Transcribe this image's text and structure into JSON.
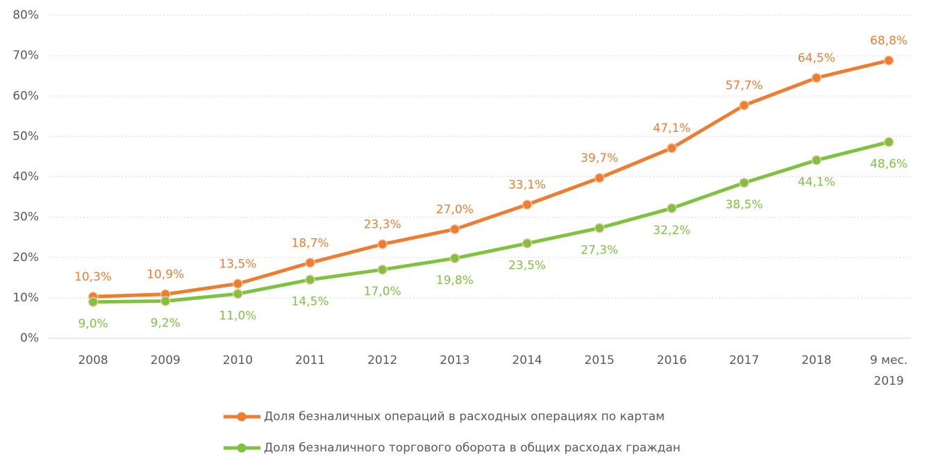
{
  "chart_data": {
    "type": "line",
    "categories": [
      "2008",
      "2009",
      "2010",
      "2011",
      "2012",
      "2013",
      "2014",
      "2015",
      "2016",
      "2017",
      "2018",
      "9 мес. 2019"
    ],
    "series": [
      {
        "name": "Доля безналичных операций в расходных операциях по картам",
        "color": "#ed7d31",
        "values": [
          10.3,
          10.9,
          13.5,
          18.7,
          23.3,
          27.0,
          33.1,
          39.7,
          47.1,
          57.7,
          64.5,
          68.8
        ],
        "value_labels": [
          "10,3%",
          "10,9%",
          "13,5%",
          "18,7%",
          "23,3%",
          "27,0%",
          "33,1%",
          "39,7%",
          "47,1%",
          "57,7%",
          "64,5%",
          "68,8%"
        ]
      },
      {
        "name": "Доля безналичного торгового оборота в общих расходах граждан",
        "color": "#7fc241",
        "values": [
          9.0,
          9.2,
          11.0,
          14.5,
          17.0,
          19.8,
          23.5,
          27.3,
          32.2,
          38.5,
          44.1,
          48.6
        ],
        "value_labels": [
          "9,0%",
          "9,2%",
          "11,0%",
          "14,5%",
          "17,0%",
          "19,8%",
          "23,5%",
          "27,3%",
          "32,2%",
          "38,5%",
          "44,1%",
          "48,6%"
        ]
      }
    ],
    "ylim": [
      0,
      80
    ],
    "yticks": [
      {
        "value": 0,
        "label": "0%"
      },
      {
        "value": 10,
        "label": "10%"
      },
      {
        "value": 20,
        "label": "20%"
      },
      {
        "value": 30,
        "label": "30%"
      },
      {
        "value": 40,
        "label": "40%"
      },
      {
        "value": 50,
        "label": "50%"
      },
      {
        "value": 60,
        "label": "60%"
      },
      {
        "value": 70,
        "label": "70%"
      },
      {
        "value": 80,
        "label": "80%"
      }
    ],
    "grid": true,
    "legend": "bottom"
  }
}
